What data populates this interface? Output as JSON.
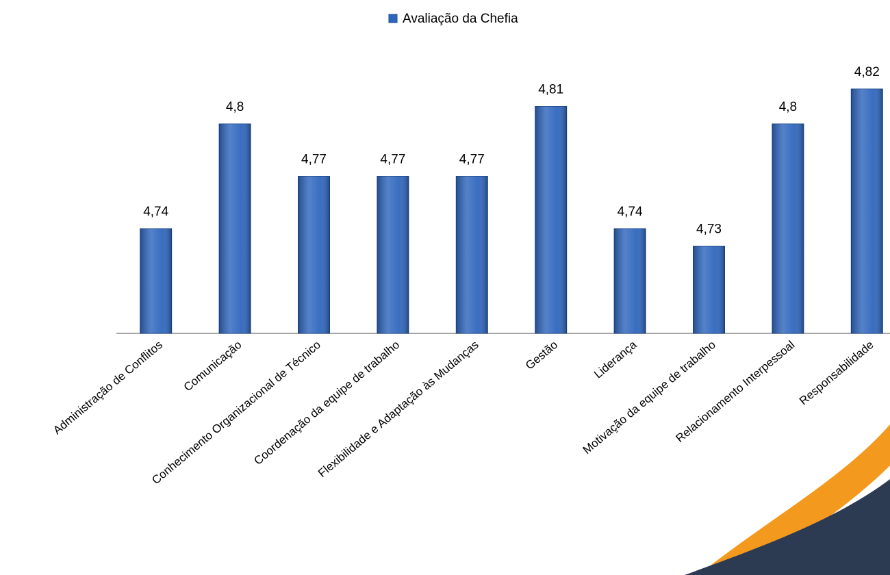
{
  "chart_data": {
    "type": "bar",
    "legend": "Avaliação da Chefia",
    "categories": [
      "Administração de Conflitos",
      "Comunicação",
      "Conhecimento Organizacional de Técnico",
      "Coordenação da equipe de trabalho",
      "Flexibilidade e Adaptação às Mudanças",
      "Gestão",
      "Liderança",
      "Motivação da equipe de trabalho",
      "Relacionamento Interpessoal",
      "Responsabilidade"
    ],
    "values": [
      4.74,
      4.8,
      4.77,
      4.77,
      4.77,
      4.81,
      4.74,
      4.73,
      4.8,
      4.82
    ],
    "value_labels": [
      "4,74",
      "4,8",
      "4,77",
      "4,77",
      "4,77",
      "4,81",
      "4,74",
      "4,73",
      "4,8",
      "4,82"
    ],
    "color": "#2f66bd",
    "ylim": [
      4.68,
      4.84
    ]
  }
}
